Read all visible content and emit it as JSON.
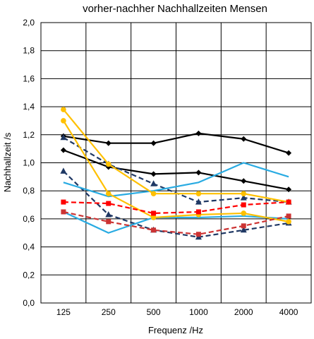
{
  "chart_data": {
    "type": "line",
    "title": "vorher-nachher Nachhallzeiten Mensen",
    "xlabel": "Frequenz /Hz",
    "ylabel": "Nachhallzeit /s",
    "categories": [
      "125",
      "250",
      "500",
      "1000",
      "2000",
      "4000"
    ],
    "y_ticks": [
      "0,0",
      "0,2",
      "0,4",
      "0,6",
      "0,8",
      "1,0",
      "1,2",
      "1,4",
      "1,6",
      "1,8",
      "2,0"
    ],
    "ylim": [
      0,
      2.0
    ],
    "grid": true,
    "legend": "none",
    "series": [
      {
        "color": "#000000",
        "style": "solid",
        "marker": "diamond",
        "values": [
          1.19,
          1.14,
          1.14,
          1.21,
          1.17,
          1.07
        ]
      },
      {
        "color": "#000000",
        "style": "solid",
        "marker": "diamond",
        "values": [
          1.09,
          0.97,
          0.92,
          0.93,
          0.87,
          0.81
        ]
      },
      {
        "color": "#1f3864",
        "style": "dashed",
        "marker": "triangle",
        "values": [
          1.18,
          0.99,
          0.85,
          0.72,
          0.75,
          0.72
        ]
      },
      {
        "color": "#1f3864",
        "style": "dashed",
        "marker": "triangle",
        "values": [
          0.94,
          0.63,
          0.52,
          0.47,
          0.52,
          0.57
        ]
      },
      {
        "color": "#29abe2",
        "style": "solid",
        "marker": "none",
        "values": [
          0.86,
          0.76,
          0.8,
          0.86,
          1.0,
          0.9
        ]
      },
      {
        "color": "#29abe2",
        "style": "solid",
        "marker": "none",
        "values": [
          0.65,
          0.5,
          0.61,
          0.61,
          0.62,
          0.6
        ]
      },
      {
        "color": "#ffc000",
        "style": "solid",
        "marker": "circle",
        "values": [
          1.38,
          0.99,
          0.78,
          0.78,
          0.78,
          0.72
        ]
      },
      {
        "color": "#ffc000",
        "style": "solid",
        "marker": "circle",
        "values": [
          1.3,
          0.78,
          0.61,
          0.63,
          0.64,
          0.58
        ]
      },
      {
        "color": "#ff0000",
        "style": "dashed",
        "marker": "square",
        "values": [
          0.72,
          0.71,
          0.64,
          0.65,
          0.7,
          0.72
        ]
      },
      {
        "color": "#cc3333",
        "style": "dashed",
        "marker": "square",
        "values": [
          0.65,
          0.58,
          0.52,
          0.49,
          0.55,
          0.62
        ]
      }
    ]
  }
}
